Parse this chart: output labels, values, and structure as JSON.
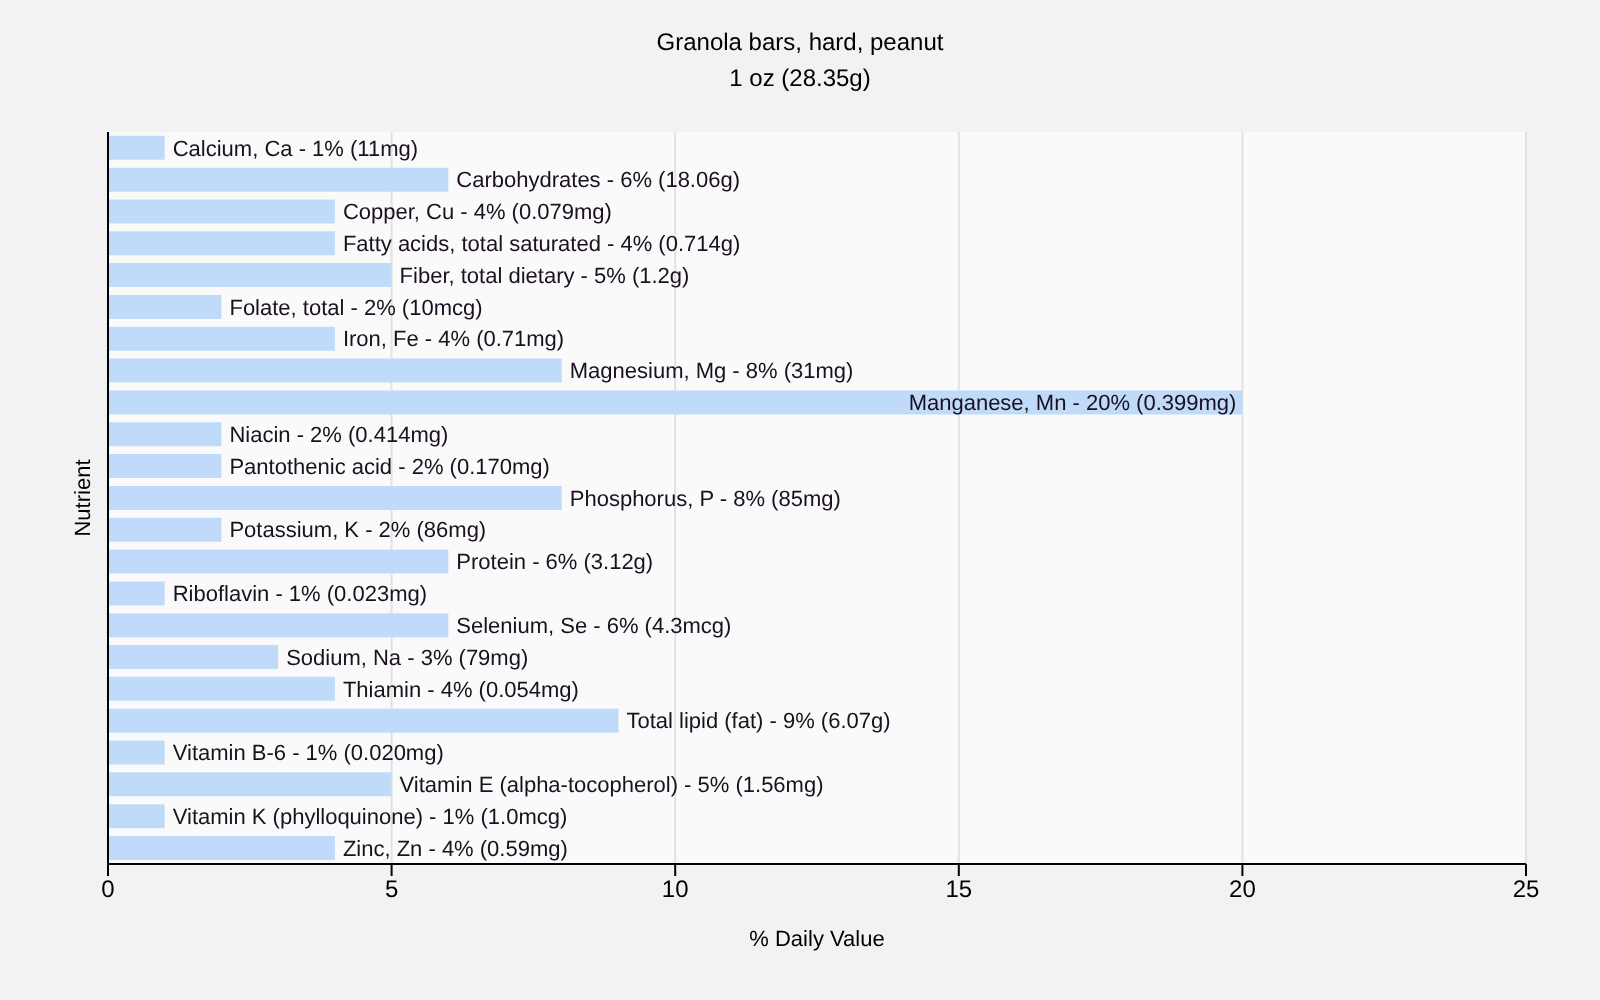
{
  "chart_data": {
    "type": "bar",
    "orientation": "horizontal",
    "title": "Granola bars, hard, peanut",
    "subtitle": "1 oz (28.35g)",
    "xlabel": "% Daily Value",
    "ylabel": "Nutrient",
    "categories": [
      "Calcium, Ca - 1% (11mg)",
      "Carbohydrates - 6% (18.06g)",
      "Copper, Cu - 4% (0.079mg)",
      "Fatty acids, total saturated - 4% (0.714g)",
      "Fiber, total dietary - 5% (1.2g)",
      "Folate, total - 2% (10mcg)",
      "Iron, Fe - 4% (0.71mg)",
      "Magnesium, Mg - 8% (31mg)",
      "Manganese, Mn - 20% (0.399mg)",
      "Niacin - 2% (0.414mg)",
      "Pantothenic acid - 2% (0.170mg)",
      "Phosphorus, P - 8% (85mg)",
      "Potassium, K - 2% (86mg)",
      "Protein - 6% (3.12g)",
      "Riboflavin - 1% (0.023mg)",
      "Selenium, Se - 6% (4.3mcg)",
      "Sodium, Na - 3% (79mg)",
      "Thiamin - 4% (0.054mg)",
      "Total lipid (fat) - 9% (6.07g)",
      "Vitamin B-6 - 1% (0.020mg)",
      "Vitamin E (alpha-tocopherol) - 5% (1.56mg)",
      "Vitamin K (phylloquinone) - 1% (1.0mcg)",
      "Zinc, Zn - 4% (0.59mg)"
    ],
    "values": [
      1,
      6,
      4,
      4,
      5,
      2,
      4,
      8,
      20,
      2,
      2,
      8,
      2,
      6,
      1,
      6,
      3,
      4,
      9,
      1,
      5,
      1,
      4
    ],
    "color": "#c0dbfa",
    "xlim": [
      0,
      25
    ],
    "xticks": [
      0,
      5,
      10,
      15,
      20,
      25
    ],
    "grid": "x"
  }
}
